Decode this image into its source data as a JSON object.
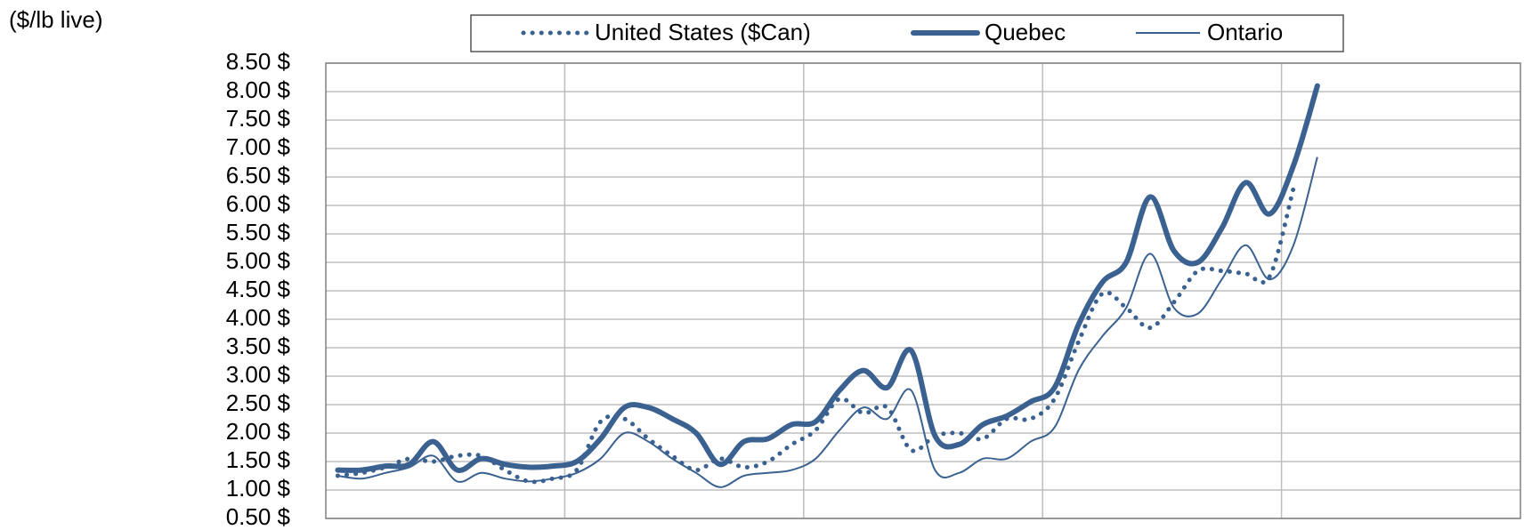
{
  "chart_data": {
    "type": "line",
    "y_axis_label": "($/lb live)",
    "categories": [
      null,
      null,
      null,
      null,
      null,
      null,
      null,
      null,
      null,
      null,
      null,
      null,
      null,
      null,
      null,
      null,
      null,
      null,
      null,
      null,
      null,
      null,
      null,
      null,
      null,
      null,
      null,
      null,
      null,
      null,
      null,
      null,
      null,
      null,
      null,
      null,
      null,
      null,
      null,
      null,
      null,
      null,
      null,
      null,
      null,
      null,
      null,
      null,
      null,
      null
    ],
    "series": [
      {
        "name": "United States ($Can)",
        "color": "#3a6190",
        "style": "dotted",
        "values": [
          1.25,
          1.3,
          1.4,
          1.55,
          1.5,
          1.6,
          1.6,
          1.35,
          1.15,
          1.2,
          1.35,
          2.2,
          2.25,
          1.9,
          1.6,
          1.35,
          1.55,
          1.4,
          1.5,
          1.8,
          2.05,
          2.6,
          2.35,
          2.45,
          1.7,
          1.95,
          2.0,
          1.9,
          2.25,
          2.25,
          2.6,
          3.6,
          4.45,
          4.2,
          3.85,
          4.3,
          4.85,
          4.85,
          4.8,
          4.75,
          6.3,
          null,
          null,
          null,
          null,
          null,
          null,
          null,
          null,
          null
        ]
      },
      {
        "name": "Quebec",
        "color": "#3a6190",
        "style": "thick",
        "values": [
          1.35,
          1.35,
          1.42,
          1.45,
          1.85,
          1.35,
          1.55,
          1.45,
          1.4,
          1.42,
          1.5,
          1.9,
          2.45,
          2.45,
          2.25,
          2.0,
          1.45,
          1.85,
          1.9,
          2.15,
          2.2,
          2.75,
          3.1,
          2.8,
          3.45,
          1.95,
          1.8,
          2.15,
          2.3,
          2.55,
          2.8,
          3.9,
          4.65,
          5.0,
          6.15,
          5.2,
          5.0,
          5.6,
          6.4,
          5.85,
          6.7,
          8.1,
          null,
          null,
          null,
          null,
          null,
          null,
          null,
          null
        ]
      },
      {
        "name": "Ontario",
        "color": "#3a6190",
        "style": "thin",
        "values": [
          1.25,
          1.2,
          1.3,
          1.4,
          1.6,
          1.15,
          1.3,
          1.2,
          1.15,
          1.2,
          1.3,
          1.55,
          2.0,
          1.85,
          1.55,
          1.3,
          1.05,
          1.25,
          1.3,
          1.35,
          1.55,
          2.05,
          2.45,
          2.25,
          2.75,
          1.35,
          1.3,
          1.55,
          1.55,
          1.85,
          2.1,
          3.1,
          3.7,
          4.2,
          5.15,
          4.2,
          4.1,
          4.7,
          5.3,
          4.7,
          5.3,
          6.85,
          null,
          null,
          null,
          null,
          null,
          null,
          null,
          null
        ]
      }
    ],
    "ylim": [
      0.5,
      8.5
    ],
    "yticks": [
      {
        "value": 0.5,
        "label": "0.50 $"
      },
      {
        "value": 1,
        "label": "1.00 $"
      },
      {
        "value": 1.5,
        "label": "1.50 $"
      },
      {
        "value": 2,
        "label": "2.00 $"
      },
      {
        "value": 2.5,
        "label": "2.50 $"
      },
      {
        "value": 3,
        "label": "3.00 $"
      },
      {
        "value": 3.5,
        "label": "3.50 $"
      },
      {
        "value": 4,
        "label": "4.00 $"
      },
      {
        "value": 4.5,
        "label": "4.50 $"
      },
      {
        "value": 5,
        "label": "5.00 $"
      },
      {
        "value": 5.5,
        "label": "5.50 $"
      },
      {
        "value": 6,
        "label": "6.00 $"
      },
      {
        "value": 6.5,
        "label": "6.50 $"
      },
      {
        "value": 7,
        "label": "7.00 $"
      },
      {
        "value": 7.5,
        "label": "7.50 $"
      },
      {
        "value": 8,
        "label": "8.00 $"
      },
      {
        "value": 8.5,
        "label": "8.50 $"
      }
    ],
    "grid": true,
    "legend": "top"
  }
}
